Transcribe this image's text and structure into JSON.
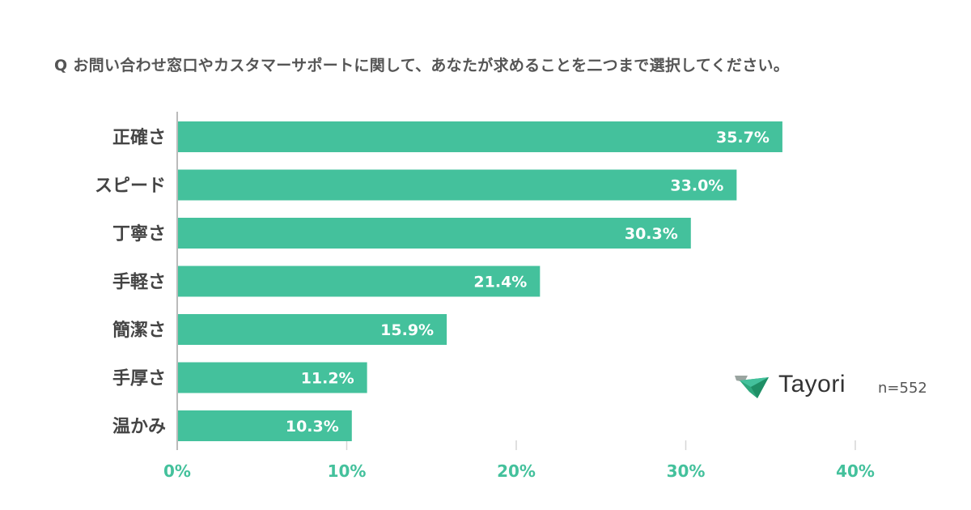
{
  "colors": {
    "bar": "#44c19c",
    "axis_tick": "#44c19c",
    "text": "#444444",
    "grid": "#d6d6d6",
    "axis_line": "#bbbbbb"
  },
  "brand": {
    "name": "Tayori",
    "logo_icon": "paper-plane-icon"
  },
  "sample_size": "n=552",
  "chart_data": {
    "type": "bar",
    "orientation": "horizontal",
    "title": "Q お問い合わせ窓口やカスタマーサポートに関して、あなたが求めることを二つまで選択してください。",
    "categories": [
      "正確さ",
      "スピード",
      "丁寧さ",
      "手軽さ",
      "簡潔さ",
      "手厚さ",
      "温かみ"
    ],
    "values": [
      35.7,
      33.0,
      30.3,
      21.4,
      15.9,
      11.2,
      10.3
    ],
    "value_labels": [
      "35.7%",
      "33.0%",
      "30.3%",
      "21.4%",
      "15.9%",
      "11.2%",
      "10.3%"
    ],
    "xlim": [
      0,
      40
    ],
    "xticks": [
      0,
      10,
      20,
      30,
      40
    ],
    "xtick_labels": [
      "0%",
      "10%",
      "20%",
      "30%",
      "40%"
    ],
    "xlabel": "",
    "ylabel": "",
    "grid": true
  }
}
